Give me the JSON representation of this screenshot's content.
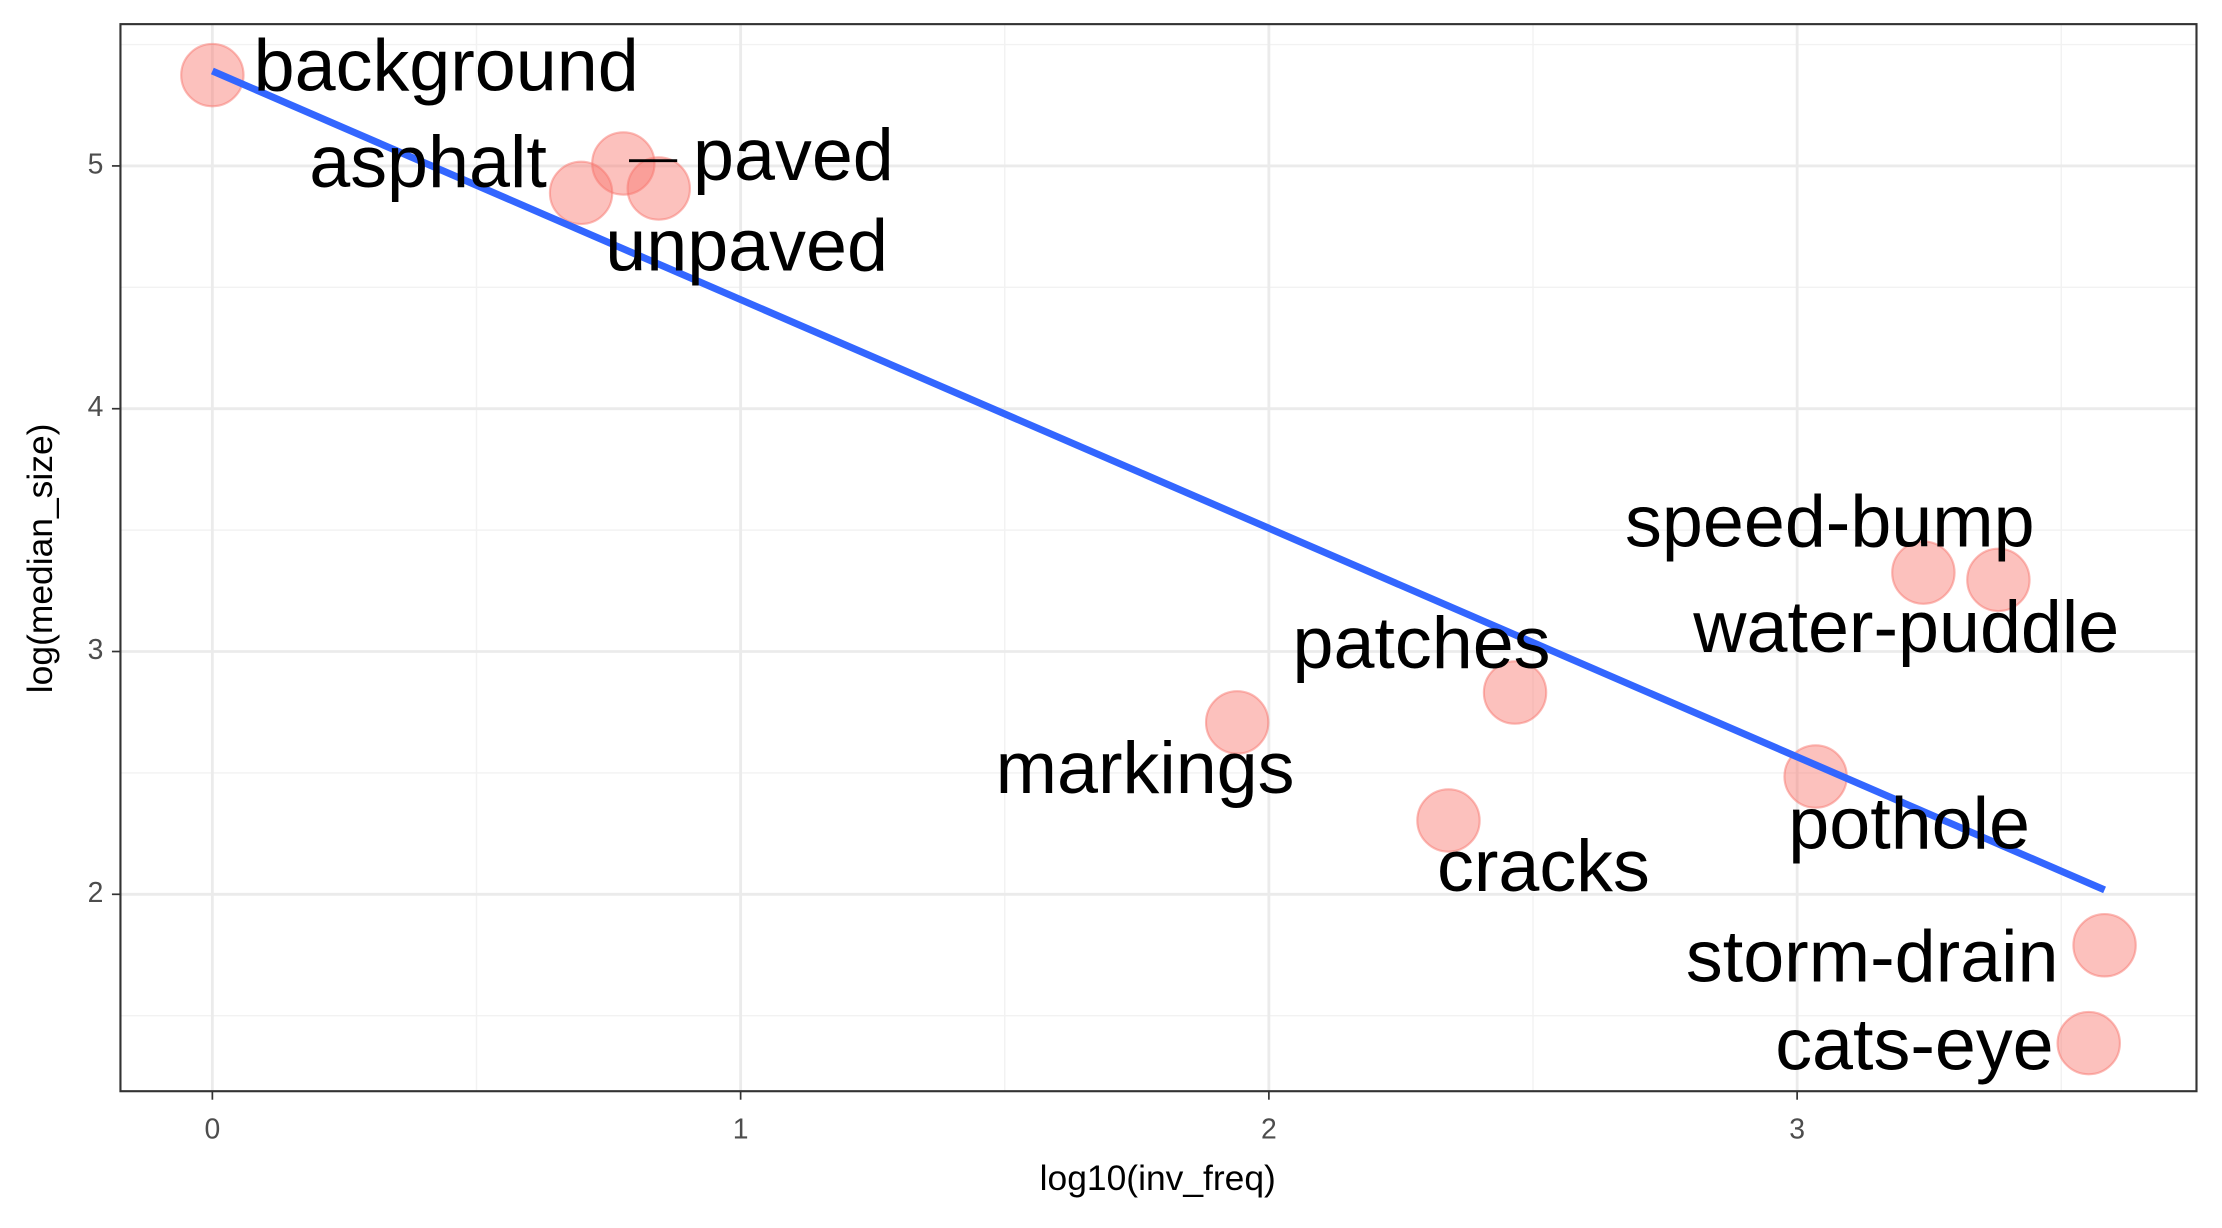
{
  "chart_data": {
    "type": "scatter",
    "x_label": "log10(inv_freq)",
    "y_label": "log(median_size)",
    "labels": [
      "background",
      "asphalt",
      "paved",
      "unpaved",
      "markings",
      "patches",
      "cracks",
      "pothole",
      "speed-bump",
      "water-puddle",
      "storm-drain",
      "cats-eye"
    ],
    "x": [
      0,
      0.698,
      0.778,
      0.845,
      1.94,
      2.466,
      2.34,
      3.035,
      3.239,
      3.381,
      3.582,
      3.552
    ],
    "values": [
      5.374,
      4.889,
      5.01,
      4.907,
      2.708,
      2.831,
      2.304,
      2.485,
      3.325,
      3.295,
      1.79,
      1.387
    ],
    "color": "#f8766d",
    "fit_line": {
      "x": [
        0,
        3.582
      ],
      "values": [
        5.391,
        2.018
      ],
      "color": "#3366ff"
    },
    "xlim": [
      -0.174,
      3.756
    ],
    "ylim": [
      1.189,
      5.584
    ],
    "xticks": [
      0,
      1,
      2,
      3
    ],
    "yticks": [
      2,
      3,
      4,
      5
    ],
    "grid": true
  }
}
